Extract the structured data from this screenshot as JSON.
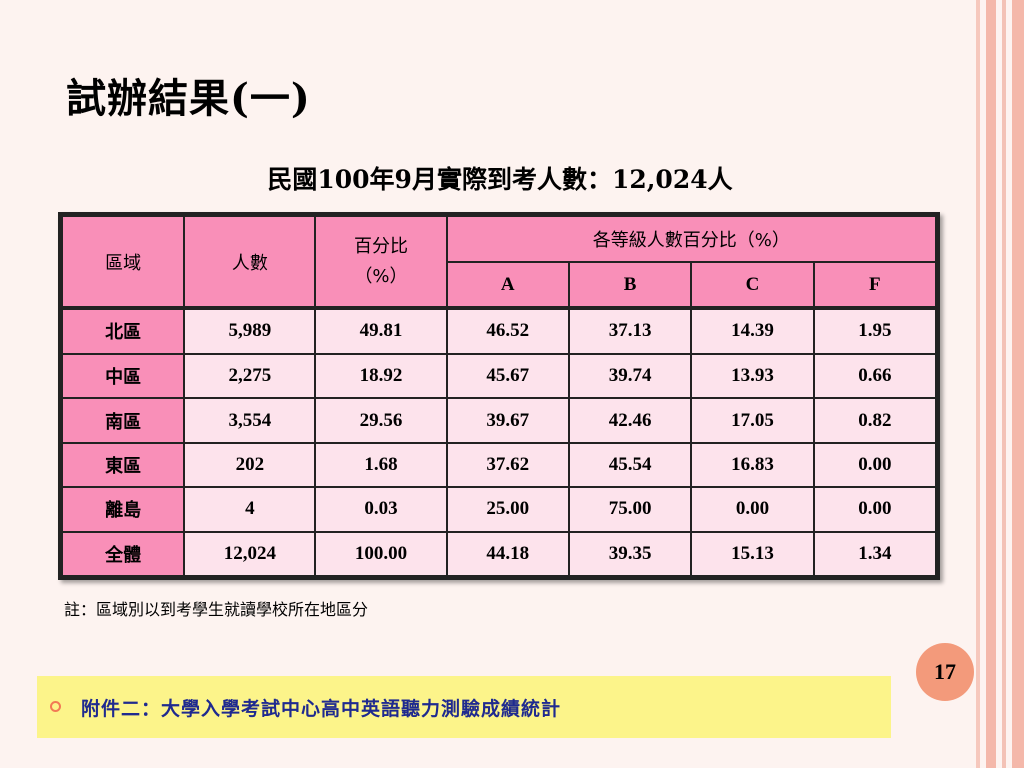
{
  "title": "試辦結果(一)",
  "subtitle": "民國100年9月實際到考人數：12,024人",
  "table": {
    "headers": {
      "region": "區域",
      "count": "人數",
      "percent": "百分比（%）",
      "grade_group": "各等級人數百分比（%）",
      "grades": [
        "A",
        "B",
        "C",
        "F"
      ]
    },
    "rows": [
      {
        "region": "北區",
        "count": "5,989",
        "percent": "49.81",
        "A": "46.52",
        "B": "37.13",
        "C": "14.39",
        "F": "1.95"
      },
      {
        "region": "中區",
        "count": "2,275",
        "percent": "18.92",
        "A": "45.67",
        "B": "39.74",
        "C": "13.93",
        "F": "0.66"
      },
      {
        "region": "南區",
        "count": "3,554",
        "percent": "29.56",
        "A": "39.67",
        "B": "42.46",
        "C": "17.05",
        "F": "0.82"
      },
      {
        "region": "東區",
        "count": "202",
        "percent": "1.68",
        "A": "37.62",
        "B": "45.54",
        "C": "16.83",
        "F": "0.00"
      },
      {
        "region": "離島",
        "count": "4",
        "percent": "0.03",
        "A": "25.00",
        "B": "75.00",
        "C": "0.00",
        "F": "0.00"
      },
      {
        "region": "全體",
        "count": "12,024",
        "percent": "100.00",
        "A": "44.18",
        "B": "39.35",
        "C": "15.13",
        "F": "1.34"
      }
    ]
  },
  "note": "註：區域別以到考學生就讀學校所在地區分",
  "page_number": "17",
  "footer": {
    "text": "附件二：大學入學考試中心高中英語聽力測驗成績統計"
  },
  "colors": {
    "header_pink": "#f98fb8",
    "cell_pink": "#fde3ec",
    "footer_yellow": "#fcf48a",
    "footer_text": "#1f2a8f",
    "page_badge": "#f39a7b"
  }
}
